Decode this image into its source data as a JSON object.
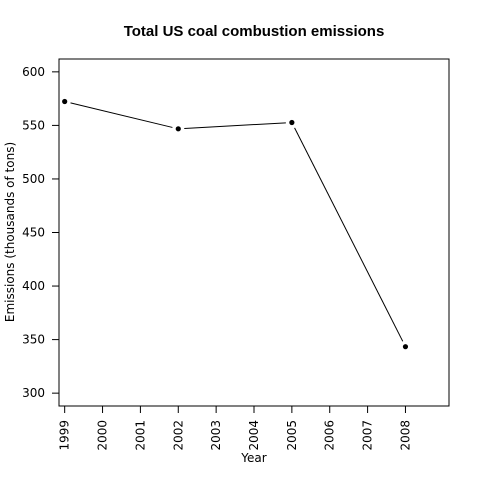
{
  "chart_data": {
    "type": "line",
    "title": "Total US coal combustion emissions",
    "xlabel": "Year",
    "ylabel": "Emissions (thousands of tons)",
    "x_ticks": [
      1999,
      2000,
      2001,
      2002,
      2003,
      2004,
      2005,
      2006,
      2007,
      2008
    ],
    "x_tick_labels": [
      "1999",
      "2000",
      "2001",
      "2002",
      "2003",
      "2004",
      "2005",
      "2006",
      "2007",
      "2008"
    ],
    "y_ticks": [
      300,
      350,
      400,
      450,
      500,
      550,
      600
    ],
    "y_tick_labels": [
      "300",
      "350",
      "400",
      "450",
      "500",
      "550",
      "600"
    ],
    "xlim": [
      1998.85,
      2009.15
    ],
    "ylim": [
      288,
      612
    ],
    "grid": false,
    "series": [
      {
        "name": "Emissions",
        "color": "#000000",
        "x": [
          1999,
          2002,
          2005,
          2008
        ],
        "values": [
          572.3,
          546.8,
          552.7,
          343.4
        ]
      }
    ]
  }
}
